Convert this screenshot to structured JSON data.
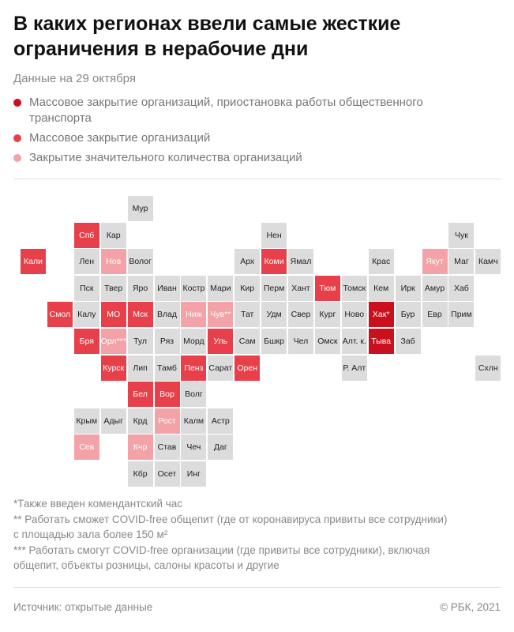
{
  "header": {
    "title": "В каких регионах ввели самые жесткие ограничения в нерабочие дни",
    "subtitle": "Данные на 29 октября"
  },
  "legend": [
    {
      "label": "Массовое закрытие организаций, приостановка работы общественного транспорта",
      "color": "#c9111e"
    },
    {
      "label": "Массовое закрытие организаций",
      "color": "#e8404b"
    },
    {
      "label": "Закрытие значительного количества организаций",
      "color": "#f3a3a8"
    }
  ],
  "tiles": [
    {
      "label": "Мур",
      "level": null
    },
    {
      "label": "Спб",
      "level": 1
    },
    {
      "label": "Кар",
      "level": null
    },
    {
      "label": "Нен",
      "level": null
    },
    {
      "label": "Чук",
      "level": null
    },
    {
      "label": "Кали",
      "level": 1
    },
    {
      "label": "Лен",
      "level": null
    },
    {
      "label": "Нов",
      "level": 2
    },
    {
      "label": "Волог",
      "level": null
    },
    {
      "label": "Арх",
      "level": null
    },
    {
      "label": "Коми",
      "level": 1
    },
    {
      "label": "Ямал",
      "level": null
    },
    {
      "label": "Крас",
      "level": null
    },
    {
      "label": "Якут",
      "level": 2
    },
    {
      "label": "Маг",
      "level": null
    },
    {
      "label": "Камч",
      "level": null
    },
    {
      "label": "Пск",
      "level": null
    },
    {
      "label": "Твер",
      "level": null
    },
    {
      "label": "Яро",
      "level": null
    },
    {
      "label": "Иван",
      "level": null
    },
    {
      "label": "Костр",
      "level": null
    },
    {
      "label": "Мари",
      "level": null
    },
    {
      "label": "Кир",
      "level": null
    },
    {
      "label": "Перм",
      "level": null
    },
    {
      "label": "Хант",
      "level": null
    },
    {
      "label": "Тюм",
      "level": 1
    },
    {
      "label": "Томск",
      "level": null
    },
    {
      "label": "Кем",
      "level": null
    },
    {
      "label": "Ирк",
      "level": null
    },
    {
      "label": "Амур",
      "level": null
    },
    {
      "label": "Хаб",
      "level": null
    },
    {
      "label": "Смол",
      "level": 1
    },
    {
      "label": "Калу",
      "level": null
    },
    {
      "label": "МО",
      "level": 1
    },
    {
      "label": "Мск",
      "level": 1
    },
    {
      "label": "Влад",
      "level": null
    },
    {
      "label": "Ниж",
      "level": 2
    },
    {
      "label": "Чув**",
      "level": 2
    },
    {
      "label": "Тат",
      "level": null
    },
    {
      "label": "Удм",
      "level": null
    },
    {
      "label": "Свер",
      "level": null
    },
    {
      "label": "Кург",
      "level": null
    },
    {
      "label": "Ново",
      "level": null
    },
    {
      "label": "Хак*",
      "level": 0
    },
    {
      "label": "Бур",
      "level": null
    },
    {
      "label": "Евр",
      "level": null
    },
    {
      "label": "Прим",
      "level": null
    },
    {
      "label": "Бря",
      "level": 1
    },
    {
      "label": "Орл***",
      "level": 2
    },
    {
      "label": "Тул",
      "level": null
    },
    {
      "label": "Ряз",
      "level": null
    },
    {
      "label": "Морд",
      "level": null
    },
    {
      "label": "Уль",
      "level": 1
    },
    {
      "label": "Сам",
      "level": null
    },
    {
      "label": "Бшкр",
      "level": null
    },
    {
      "label": "Чел",
      "level": null
    },
    {
      "label": "Омск",
      "level": null
    },
    {
      "label": "Алт. к.",
      "level": null
    },
    {
      "label": "Тыва",
      "level": 0
    },
    {
      "label": "Заб",
      "level": null
    },
    {
      "label": "Курск",
      "level": 1
    },
    {
      "label": "Лип",
      "level": null
    },
    {
      "label": "Тамб",
      "level": null
    },
    {
      "label": "Пенз",
      "level": 1
    },
    {
      "label": "Сарат",
      "level": null
    },
    {
      "label": "Орен",
      "level": 1
    },
    {
      "label": "Р. Алт",
      "level": null
    },
    {
      "label": "Схлн",
      "level": null
    },
    {
      "label": "Бел",
      "level": 1
    },
    {
      "label": "Вор",
      "level": 1
    },
    {
      "label": "Волг",
      "level": null
    },
    {
      "label": "Крым",
      "level": null
    },
    {
      "label": "Адыг",
      "level": null
    },
    {
      "label": "Крд",
      "level": null
    },
    {
      "label": "Рост",
      "level": 2
    },
    {
      "label": "Калм",
      "level": null
    },
    {
      "label": "Астр",
      "level": null
    },
    {
      "label": "Сев",
      "level": 2
    },
    {
      "label": "Кчр",
      "level": 2
    },
    {
      "label": "Став",
      "level": null
    },
    {
      "label": "Чеч",
      "level": null
    },
    {
      "label": "Даг",
      "level": null
    },
    {
      "label": "Кбр",
      "level": null
    },
    {
      "label": "Осет",
      "level": null
    },
    {
      "label": "Инг",
      "level": null
    }
  ],
  "empty_color": "#dcdcdc",
  "notes": [
    "*Также введен комендантский час",
    "** Работать сможет COVID-free общепит (где от коронавируса привиты все сотрудники)",
    "с площадью зала более 150 м²",
    "*** Работать смогут COVID-free организации (где привиты все сотрудники), включая",
    "общепит, объекты розницы, салоны красоты и другие"
  ],
  "footer": {
    "source": "Источник:  открытые данные",
    "copyright": "© РБК, 2021"
  }
}
